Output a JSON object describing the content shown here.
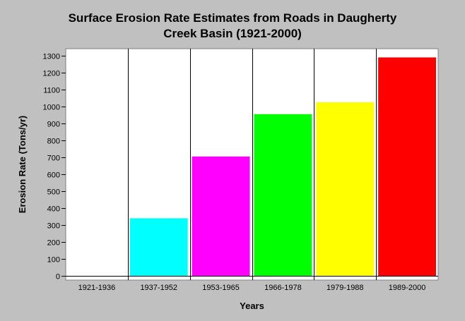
{
  "chart_data": {
    "type": "bar",
    "title_lines": [
      "Surface Erosion Rate Estimates from Roads in Daugherty",
      "Creek Basin (1921-2000)"
    ],
    "xlabel": "Years",
    "ylabel": "Erosion Rate (Tons/yr)",
    "categories": [
      "1921-1936",
      "1937-1952",
      "1953-1965",
      "1966-1978",
      "1979-1988",
      "1989-2000"
    ],
    "values": [
      0,
      340,
      705,
      955,
      1025,
      1290
    ],
    "bar_colors": [
      "#00ffff",
      "#00ffff",
      "#ff00ff",
      "#00ff00",
      "#ffff00",
      "#ff0000"
    ],
    "ylim": [
      0,
      1300
    ],
    "yticks": [
      0,
      100,
      200,
      300,
      400,
      500,
      600,
      700,
      800,
      900,
      1000,
      1100,
      1200,
      1300
    ],
    "grid": "vertical lines between categories",
    "legend": "none",
    "background_color": "#c0c0c0",
    "plot_background_color": "#ffffff"
  }
}
